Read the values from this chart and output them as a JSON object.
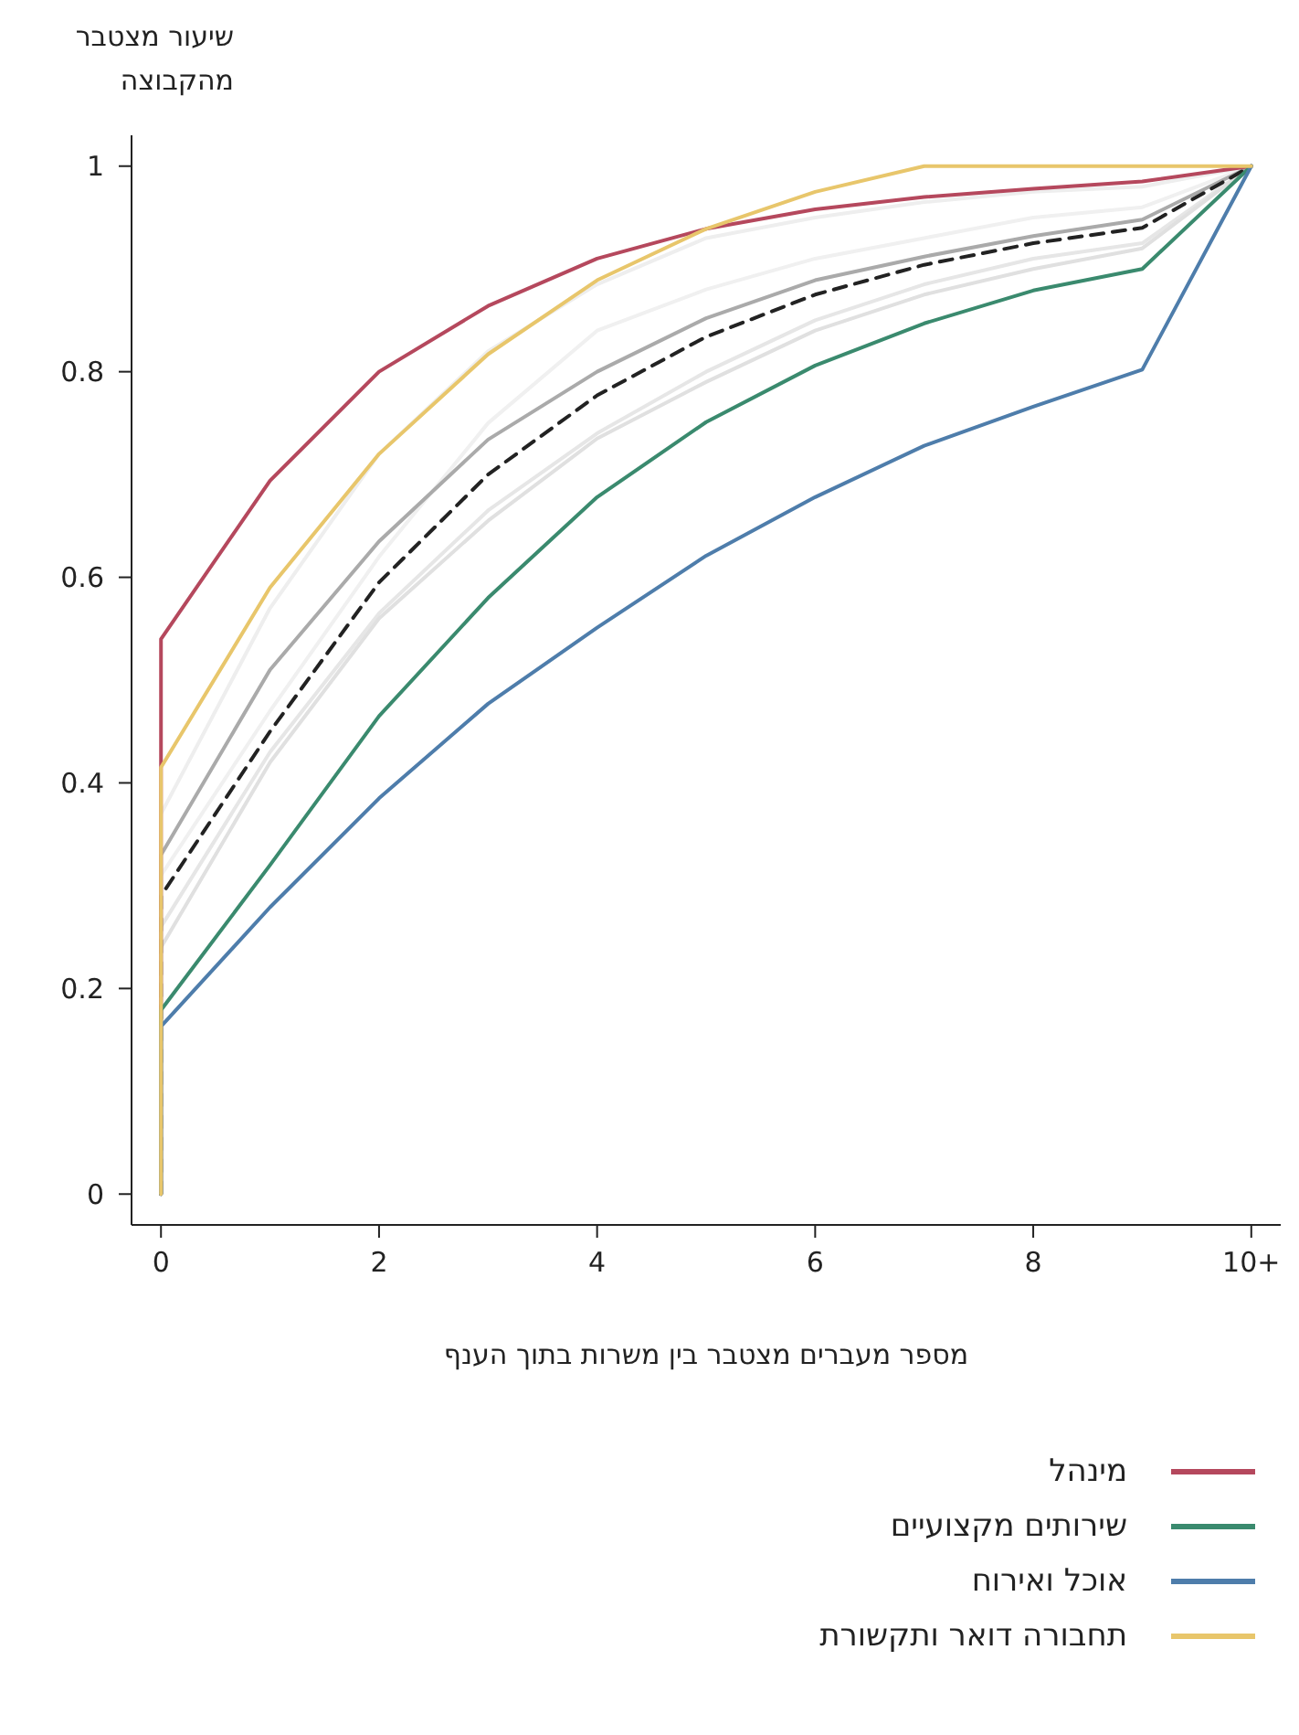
{
  "chart_data": {
    "type": "line",
    "ylabel": "שיעור מצטבר מהקבוצה",
    "xlabel": "מספר מעברים מצטבר בין משרות בתוך הענף",
    "x": [
      0,
      0,
      1,
      2,
      3,
      4,
      5,
      6,
      7,
      8,
      9,
      10
    ],
    "xlim": [
      -0.27,
      10.27
    ],
    "xticks": [
      0,
      2,
      4,
      6,
      8,
      {
        "value": 10,
        "label": "10+"
      }
    ],
    "ylim": [
      -0.03,
      1.03
    ],
    "yticks": [
      0,
      0.2,
      0.4,
      0.6,
      0.8,
      1
    ],
    "grid": false,
    "legend": "bottom right",
    "marker": "none",
    "series": [
      {
        "color": "#eeeeee",
        "values": [
          0,
          0.37,
          0.57,
          0.72,
          0.82,
          0.885,
          0.93,
          0.95,
          0.965,
          0.975,
          0.98,
          1
        ]
      },
      {
        "color": "#f0f0f0",
        "values": [
          0,
          0.31,
          0.47,
          0.62,
          0.75,
          0.84,
          0.88,
          0.91,
          0.93,
          0.95,
          0.96,
          1
        ]
      },
      {
        "color": "#e6e6e6",
        "values": [
          0,
          0.26,
          0.43,
          0.565,
          0.665,
          0.74,
          0.8,
          0.85,
          0.885,
          0.91,
          0.925,
          1
        ]
      },
      {
        "color": "#e0e0e0",
        "values": [
          0,
          0.24,
          0.42,
          0.56,
          0.655,
          0.735,
          0.79,
          0.84,
          0.875,
          0.9,
          0.92,
          1
        ]
      },
      {
        "color": "#aaaaaa",
        "values": [
          0,
          0.33,
          0.51,
          0.635,
          0.734,
          0.8,
          0.852,
          0.889,
          0.912,
          0.932,
          0.948,
          1
        ]
      },
      {
        "color": "#222222",
        "line_style": "dashed",
        "values": [
          0,
          0.29,
          0.45,
          0.595,
          0.7,
          0.777,
          0.834,
          0.875,
          0.904,
          0.925,
          0.94,
          1
        ]
      },
      {
        "name": "מינהל",
        "color": "#b5485d",
        "values": [
          0,
          0.54,
          0.694,
          0.8,
          0.864,
          0.91,
          0.939,
          0.958,
          0.97,
          0.978,
          0.985,
          1
        ]
      },
      {
        "name": "שירותים מקצועיים",
        "color": "#3a8a6e",
        "values": [
          0,
          0.179,
          0.32,
          0.465,
          0.58,
          0.678,
          0.751,
          0.806,
          0.847,
          0.879,
          0.9,
          1
        ]
      },
      {
        "name": "אוכל ואירוח",
        "color": "#4e7dab",
        "values": [
          0,
          0.163,
          0.279,
          0.385,
          0.477,
          0.551,
          0.621,
          0.678,
          0.728,
          0.766,
          0.802,
          1
        ]
      },
      {
        "name": "תחבורה דואר ותקשורת",
        "color": "#e8c66b",
        "values": [
          0,
          0.415,
          0.59,
          0.72,
          0.817,
          0.889,
          0.939,
          0.975,
          1,
          1,
          1,
          1
        ]
      }
    ]
  }
}
